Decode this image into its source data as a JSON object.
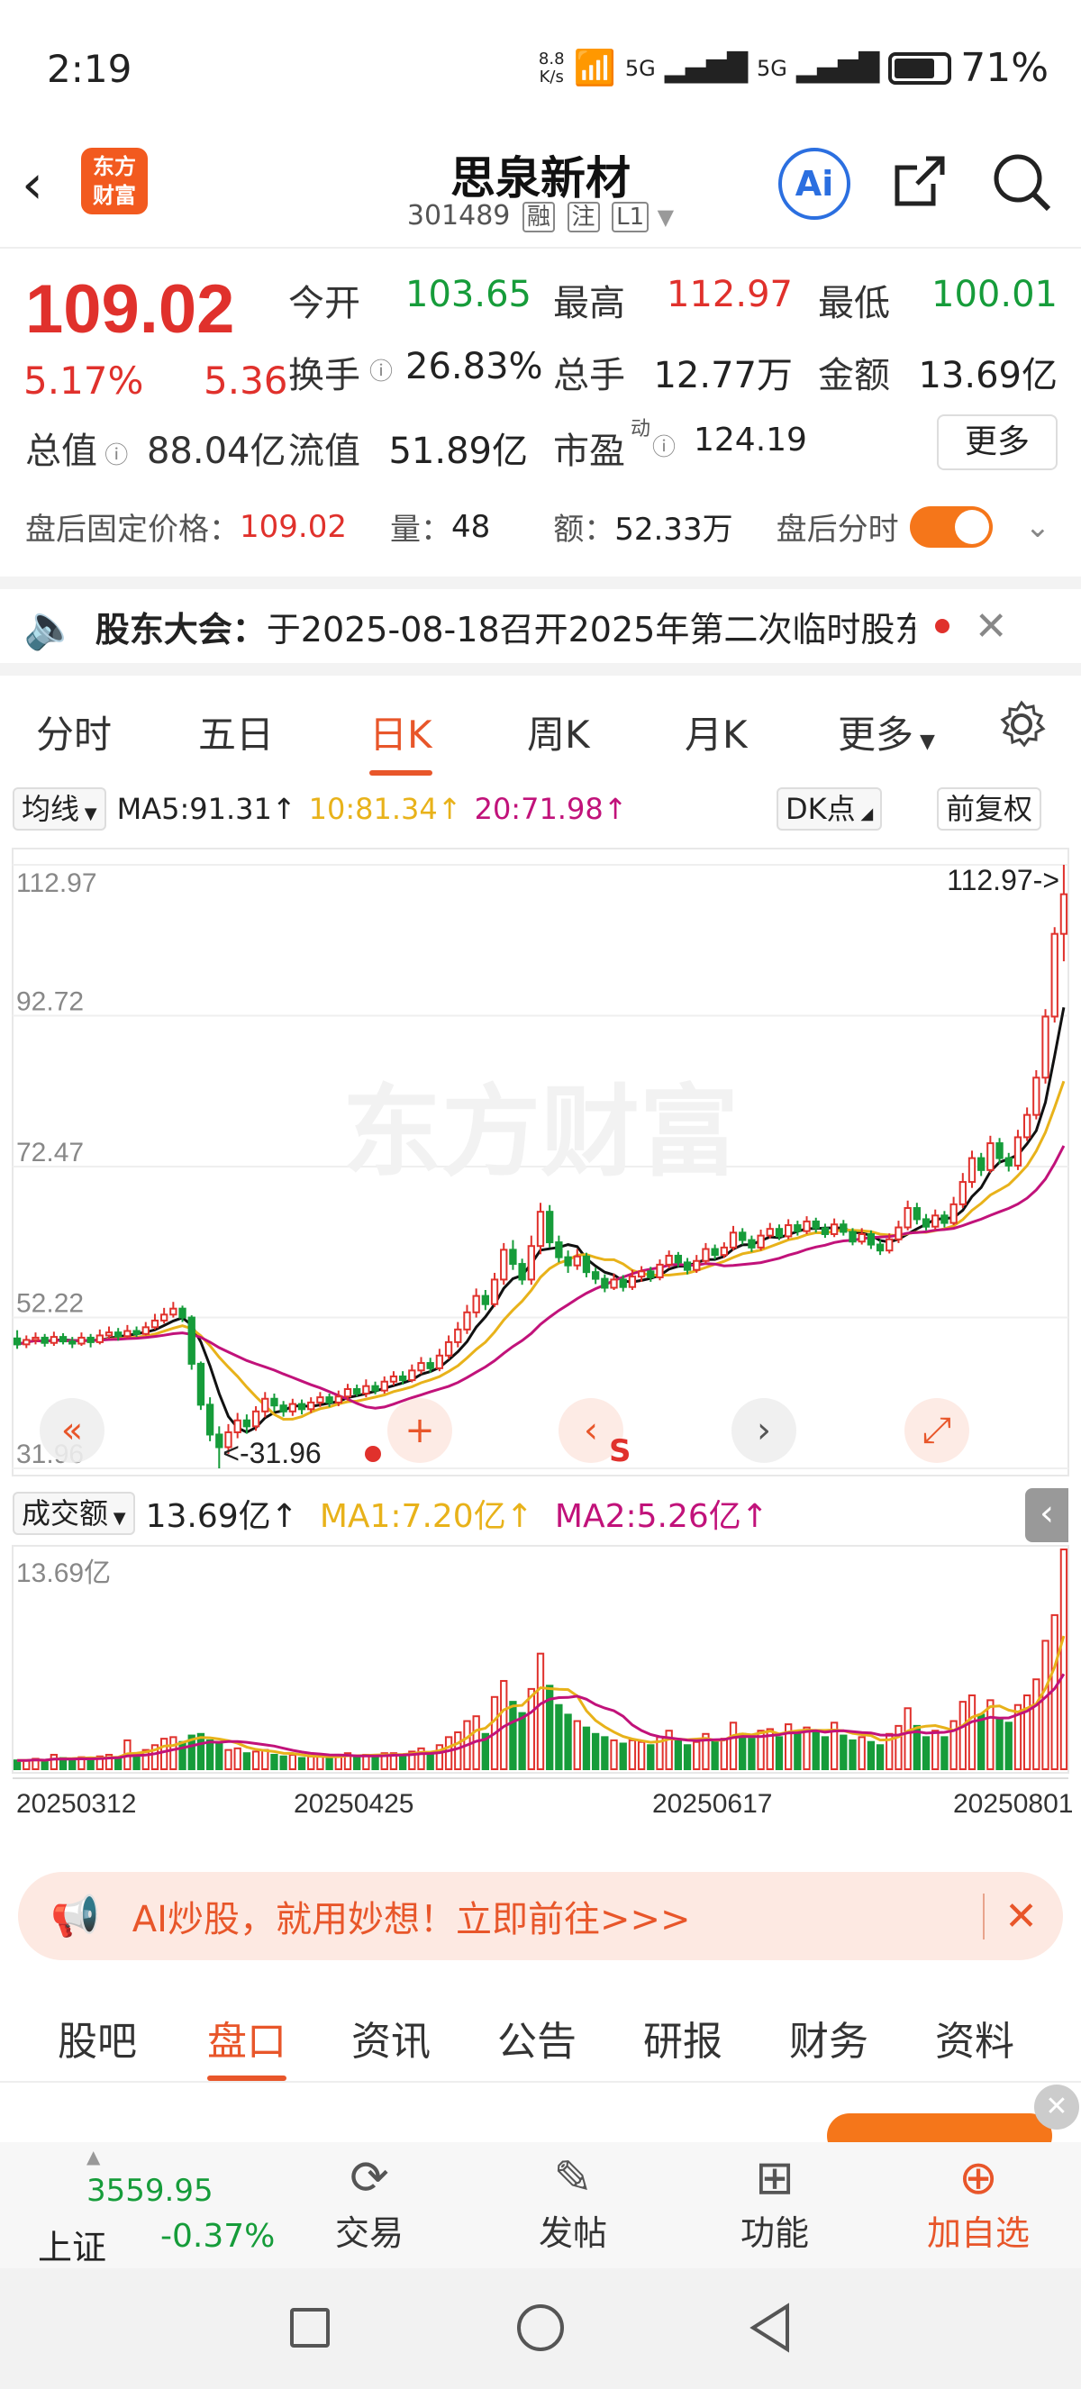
{
  "status_bar": {
    "time": "2:19",
    "net_speed_top": "8.8",
    "net_speed_bottom": "K/s",
    "signal1": "5G",
    "signal2": "5G",
    "battery": "71%"
  },
  "header": {
    "title": "思泉新材",
    "code": "301489",
    "tags": [
      "融",
      "注",
      "L1"
    ],
    "logo_line1": "东方",
    "logo_line2": "财富",
    "ai_label": "Ai"
  },
  "quote": {
    "price": "109.02",
    "change_pct": "5.17%",
    "change": "5.36",
    "items": [
      {
        "label": "今开",
        "value": "103.65",
        "color": "green"
      },
      {
        "label": "最高",
        "value": "112.97",
        "color": "red"
      },
      {
        "label": "最低",
        "value": "100.01",
        "color": "green"
      },
      {
        "label": "换手",
        "value": "26.83%",
        "color": "normal"
      },
      {
        "label": "总手",
        "value": "12.77万",
        "color": "normal"
      },
      {
        "label": "金额",
        "value": "13.69亿",
        "color": "normal"
      },
      {
        "label": "总值",
        "value": "88.04亿",
        "color": "normal"
      },
      {
        "label": "流值",
        "value": "51.89亿",
        "color": "normal"
      },
      {
        "label": "市盈",
        "value": "124.19",
        "color": "normal"
      }
    ],
    "pe_sup": "动",
    "more": "更多"
  },
  "after_hours": {
    "label": "盘后固定价格：",
    "price": "109.02",
    "vol_label": "量：",
    "vol": "48",
    "amt_label": "额：",
    "amt": "52.33万",
    "toggle_label": "盘后分时",
    "toggle_on": true
  },
  "notice": {
    "prefix": "股东大会：",
    "text": "于2025-08-18召开2025年第二次临时股东..."
  },
  "kline_tabs": [
    {
      "label": "分时",
      "active": false
    },
    {
      "label": "五日",
      "active": false
    },
    {
      "label": "日K",
      "active": true
    },
    {
      "label": "周K",
      "active": false
    },
    {
      "label": "月K",
      "active": false
    },
    {
      "label": "更多",
      "active": false
    }
  ],
  "chart_toolbar": {
    "indicator": "均线",
    "ma5": "MA5:91.31",
    "ma10": "10:81.34",
    "ma20": "20:71.98",
    "dk": "DK点",
    "adjust": "前复权",
    "arrow": "↑"
  },
  "volume_toolbar": {
    "indicator": "成交额",
    "value": "13.69亿",
    "ma1": "MA1:7.20亿",
    "ma2": "MA2:5.26亿",
    "arrow": "↑"
  },
  "chart_data": {
    "type": "candlestick",
    "price_axis": {
      "ticks": [
        "112.97",
        "92.72",
        "72.47",
        "52.22",
        "31.96"
      ],
      "ylim": [
        31.96,
        112.97
      ]
    },
    "max_label": "112.97->",
    "min_label": "<-31.96",
    "volume_axis": {
      "max_label": "13.69亿",
      "ylim": [
        0,
        13.69
      ]
    },
    "date_labels": [
      "20250312",
      "20250425",
      "20250617",
      "20250801"
    ],
    "series": [
      {
        "name": "MA5",
        "color": "#111111"
      },
      {
        "name": "MA10",
        "color": "#e8b21a"
      },
      {
        "name": "MA20",
        "color": "#c1127a"
      }
    ],
    "candles": [
      {
        "o": 49.4,
        "c": 48.6,
        "h": 50.5,
        "l": 48.0,
        "v": 0.55
      },
      {
        "o": 48.6,
        "c": 49.2,
        "h": 49.8,
        "l": 48.1,
        "v": 0.55
      },
      {
        "o": 49.2,
        "c": 49.5,
        "h": 50.2,
        "l": 48.6,
        "v": 0.65
      },
      {
        "o": 49.5,
        "c": 48.8,
        "h": 50.0,
        "l": 48.3,
        "v": 0.5
      },
      {
        "o": 48.8,
        "c": 49.6,
        "h": 50.3,
        "l": 48.4,
        "v": 0.9
      },
      {
        "o": 49.6,
        "c": 49.0,
        "h": 50.1,
        "l": 48.6,
        "v": 0.7
      },
      {
        "o": 49.0,
        "c": 48.7,
        "h": 49.6,
        "l": 48.1,
        "v": 0.6
      },
      {
        "o": 48.7,
        "c": 49.5,
        "h": 50.2,
        "l": 48.4,
        "v": 0.75
      },
      {
        "o": 49.5,
        "c": 48.9,
        "h": 50.0,
        "l": 48.2,
        "v": 0.6
      },
      {
        "o": 48.9,
        "c": 49.8,
        "h": 50.6,
        "l": 48.6,
        "v": 0.8
      },
      {
        "o": 49.8,
        "c": 50.2,
        "h": 51.0,
        "l": 49.4,
        "v": 0.9
      },
      {
        "o": 50.2,
        "c": 49.7,
        "h": 50.8,
        "l": 49.1,
        "v": 0.7
      },
      {
        "o": 49.7,
        "c": 50.4,
        "h": 51.2,
        "l": 49.4,
        "v": 1.8
      },
      {
        "o": 50.4,
        "c": 50.0,
        "h": 51.0,
        "l": 49.6,
        "v": 0.8
      },
      {
        "o": 50.0,
        "c": 50.9,
        "h": 51.6,
        "l": 49.8,
        "v": 1.2
      },
      {
        "o": 50.9,
        "c": 51.8,
        "h": 52.7,
        "l": 50.6,
        "v": 1.5
      },
      {
        "o": 51.8,
        "c": 52.6,
        "h": 53.5,
        "l": 51.4,
        "v": 1.9
      },
      {
        "o": 52.6,
        "c": 53.4,
        "h": 54.3,
        "l": 52.2,
        "v": 2.0
      },
      {
        "o": 53.4,
        "c": 52.2,
        "h": 53.8,
        "l": 51.6,
        "v": 1.7
      },
      {
        "o": 52.2,
        "c": 46.0,
        "h": 52.5,
        "l": 45.2,
        "v": 2.1
      },
      {
        "o": 46.0,
        "c": 40.5,
        "h": 46.3,
        "l": 39.8,
        "v": 2.2
      },
      {
        "o": 40.5,
        "c": 36.5,
        "h": 41.5,
        "l": 35.6,
        "v": 1.8
      },
      {
        "o": 36.5,
        "c": 34.8,
        "h": 37.6,
        "l": 31.96,
        "v": 1.6
      },
      {
        "o": 34.8,
        "c": 36.8,
        "h": 37.9,
        "l": 33.9,
        "v": 1.2
      },
      {
        "o": 36.8,
        "c": 38.4,
        "h": 39.4,
        "l": 36.0,
        "v": 1.3
      },
      {
        "o": 38.4,
        "c": 37.6,
        "h": 39.2,
        "l": 36.6,
        "v": 1.0
      },
      {
        "o": 37.6,
        "c": 39.6,
        "h": 40.3,
        "l": 37.0,
        "v": 1.1
      },
      {
        "o": 39.6,
        "c": 41.3,
        "h": 42.2,
        "l": 38.8,
        "v": 1.2
      },
      {
        "o": 41.3,
        "c": 40.4,
        "h": 42.0,
        "l": 39.6,
        "v": 0.9
      },
      {
        "o": 40.4,
        "c": 39.6,
        "h": 41.0,
        "l": 38.9,
        "v": 0.8
      },
      {
        "o": 39.6,
        "c": 40.6,
        "h": 41.3,
        "l": 39.0,
        "v": 0.9
      },
      {
        "o": 40.6,
        "c": 39.9,
        "h": 41.2,
        "l": 39.2,
        "v": 0.7
      },
      {
        "o": 39.9,
        "c": 40.8,
        "h": 41.5,
        "l": 39.4,
        "v": 0.8
      },
      {
        "o": 40.8,
        "c": 41.5,
        "h": 42.2,
        "l": 40.2,
        "v": 0.8
      },
      {
        "o": 41.5,
        "c": 40.8,
        "h": 42.0,
        "l": 40.2,
        "v": 0.7
      },
      {
        "o": 40.8,
        "c": 41.6,
        "h": 42.4,
        "l": 40.3,
        "v": 0.9
      },
      {
        "o": 41.6,
        "c": 42.6,
        "h": 43.3,
        "l": 41.1,
        "v": 1.0
      },
      {
        "o": 42.6,
        "c": 42.0,
        "h": 43.2,
        "l": 41.6,
        "v": 0.8
      },
      {
        "o": 42.0,
        "c": 43.0,
        "h": 43.9,
        "l": 41.5,
        "v": 0.9
      },
      {
        "o": 43.0,
        "c": 42.4,
        "h": 43.6,
        "l": 41.9,
        "v": 0.8
      },
      {
        "o": 42.4,
        "c": 43.6,
        "h": 44.3,
        "l": 42.0,
        "v": 1.0
      },
      {
        "o": 43.6,
        "c": 44.3,
        "h": 45.0,
        "l": 43.1,
        "v": 1.0
      },
      {
        "o": 44.3,
        "c": 43.8,
        "h": 45.0,
        "l": 43.2,
        "v": 0.9
      },
      {
        "o": 43.8,
        "c": 45.1,
        "h": 45.9,
        "l": 43.5,
        "v": 1.1
      },
      {
        "o": 45.1,
        "c": 46.1,
        "h": 46.9,
        "l": 44.6,
        "v": 1.3
      },
      {
        "o": 46.1,
        "c": 45.4,
        "h": 46.8,
        "l": 44.8,
        "v": 1.0
      },
      {
        "o": 45.4,
        "c": 47.1,
        "h": 48.0,
        "l": 45.0,
        "v": 1.5
      },
      {
        "o": 47.1,
        "c": 48.9,
        "h": 49.8,
        "l": 46.6,
        "v": 2.0
      },
      {
        "o": 48.9,
        "c": 50.6,
        "h": 51.6,
        "l": 48.2,
        "v": 2.3
      },
      {
        "o": 50.6,
        "c": 52.9,
        "h": 53.9,
        "l": 50.0,
        "v": 3.0
      },
      {
        "o": 52.9,
        "c": 55.1,
        "h": 56.1,
        "l": 52.2,
        "v": 3.3
      },
      {
        "o": 55.1,
        "c": 54.0,
        "h": 55.9,
        "l": 53.2,
        "v": 2.2
      },
      {
        "o": 54.0,
        "c": 57.3,
        "h": 58.2,
        "l": 53.6,
        "v": 4.5
      },
      {
        "o": 57.3,
        "c": 61.3,
        "h": 62.2,
        "l": 56.6,
        "v": 5.5
      },
      {
        "o": 61.3,
        "c": 59.4,
        "h": 62.6,
        "l": 58.6,
        "v": 4.2
      },
      {
        "o": 59.4,
        "c": 57.3,
        "h": 60.1,
        "l": 56.6,
        "v": 3.5
      },
      {
        "o": 57.3,
        "c": 61.8,
        "h": 63.2,
        "l": 56.6,
        "v": 5.0
      },
      {
        "o": 61.8,
        "c": 66.4,
        "h": 67.6,
        "l": 60.7,
        "v": 7.2
      },
      {
        "o": 66.4,
        "c": 62.3,
        "h": 67.3,
        "l": 61.6,
        "v": 5.2
      },
      {
        "o": 62.3,
        "c": 60.3,
        "h": 63.2,
        "l": 59.6,
        "v": 4.0
      },
      {
        "o": 60.3,
        "c": 59.2,
        "h": 61.2,
        "l": 58.2,
        "v": 3.4
      },
      {
        "o": 59.2,
        "c": 60.4,
        "h": 61.4,
        "l": 58.6,
        "v": 3.0
      },
      {
        "o": 60.4,
        "c": 58.3,
        "h": 60.9,
        "l": 57.6,
        "v": 2.6
      },
      {
        "o": 58.3,
        "c": 57.4,
        "h": 58.9,
        "l": 56.7,
        "v": 2.2
      },
      {
        "o": 57.4,
        "c": 56.2,
        "h": 58.0,
        "l": 55.6,
        "v": 2.0
      },
      {
        "o": 56.2,
        "c": 57.3,
        "h": 58.1,
        "l": 55.9,
        "v": 1.8
      },
      {
        "o": 57.3,
        "c": 56.3,
        "h": 57.9,
        "l": 55.7,
        "v": 1.6
      },
      {
        "o": 56.3,
        "c": 57.7,
        "h": 58.6,
        "l": 55.9,
        "v": 1.8
      },
      {
        "o": 57.7,
        "c": 58.4,
        "h": 59.1,
        "l": 57.0,
        "v": 1.7
      },
      {
        "o": 58.4,
        "c": 57.6,
        "h": 59.0,
        "l": 57.0,
        "v": 1.5
      },
      {
        "o": 57.6,
        "c": 59.3,
        "h": 60.0,
        "l": 57.2,
        "v": 2.0
      },
      {
        "o": 59.3,
        "c": 60.5,
        "h": 61.2,
        "l": 58.8,
        "v": 2.4
      },
      {
        "o": 60.5,
        "c": 59.6,
        "h": 61.0,
        "l": 59.0,
        "v": 1.8
      },
      {
        "o": 59.6,
        "c": 58.6,
        "h": 60.2,
        "l": 58.0,
        "v": 1.5
      },
      {
        "o": 58.6,
        "c": 59.8,
        "h": 60.6,
        "l": 58.2,
        "v": 1.7
      },
      {
        "o": 59.8,
        "c": 61.4,
        "h": 62.2,
        "l": 59.4,
        "v": 2.2
      },
      {
        "o": 61.4,
        "c": 60.6,
        "h": 62.0,
        "l": 60.0,
        "v": 1.8
      },
      {
        "o": 60.6,
        "c": 61.6,
        "h": 62.3,
        "l": 60.2,
        "v": 1.9
      },
      {
        "o": 61.6,
        "c": 63.6,
        "h": 64.5,
        "l": 61.2,
        "v": 2.9
      },
      {
        "o": 63.6,
        "c": 62.6,
        "h": 64.2,
        "l": 62.0,
        "v": 2.2
      },
      {
        "o": 62.6,
        "c": 61.6,
        "h": 63.2,
        "l": 61.0,
        "v": 1.9
      },
      {
        "o": 61.6,
        "c": 63.2,
        "h": 64.0,
        "l": 61.2,
        "v": 2.4
      },
      {
        "o": 63.2,
        "c": 64.1,
        "h": 64.9,
        "l": 62.8,
        "v": 2.5
      },
      {
        "o": 64.1,
        "c": 63.1,
        "h": 64.7,
        "l": 62.6,
        "v": 2.0
      },
      {
        "o": 63.1,
        "c": 64.6,
        "h": 65.4,
        "l": 62.7,
        "v": 2.8
      },
      {
        "o": 64.6,
        "c": 63.8,
        "h": 65.2,
        "l": 63.2,
        "v": 2.3
      },
      {
        "o": 63.8,
        "c": 65.1,
        "h": 65.8,
        "l": 63.4,
        "v": 2.6
      },
      {
        "o": 65.1,
        "c": 64.2,
        "h": 65.6,
        "l": 63.6,
        "v": 2.4
      },
      {
        "o": 64.2,
        "c": 63.4,
        "h": 64.8,
        "l": 62.9,
        "v": 2.0
      },
      {
        "o": 63.4,
        "c": 64.7,
        "h": 65.5,
        "l": 63.0,
        "v": 2.9
      },
      {
        "o": 64.7,
        "c": 63.7,
        "h": 65.3,
        "l": 63.2,
        "v": 2.1
      },
      {
        "o": 63.7,
        "c": 62.4,
        "h": 64.2,
        "l": 61.9,
        "v": 1.8
      },
      {
        "o": 62.4,
        "c": 63.4,
        "h": 64.2,
        "l": 62.0,
        "v": 2.0
      },
      {
        "o": 63.4,
        "c": 62.0,
        "h": 63.9,
        "l": 61.4,
        "v": 1.7
      },
      {
        "o": 62.0,
        "c": 61.2,
        "h": 62.6,
        "l": 60.6,
        "v": 1.5
      },
      {
        "o": 61.2,
        "c": 62.7,
        "h": 63.5,
        "l": 60.8,
        "v": 2.2
      },
      {
        "o": 62.7,
        "c": 64.3,
        "h": 65.2,
        "l": 62.2,
        "v": 2.7
      },
      {
        "o": 64.3,
        "c": 66.9,
        "h": 67.9,
        "l": 63.9,
        "v": 3.8
      },
      {
        "o": 66.9,
        "c": 65.4,
        "h": 67.6,
        "l": 64.7,
        "v": 2.7
      },
      {
        "o": 65.4,
        "c": 64.4,
        "h": 66.1,
        "l": 63.9,
        "v": 2.0
      },
      {
        "o": 64.4,
        "c": 65.9,
        "h": 66.7,
        "l": 64.0,
        "v": 2.4
      },
      {
        "o": 65.9,
        "c": 64.9,
        "h": 66.5,
        "l": 64.3,
        "v": 2.0
      },
      {
        "o": 64.9,
        "c": 67.4,
        "h": 68.4,
        "l": 64.6,
        "v": 3.0
      },
      {
        "o": 67.4,
        "c": 70.4,
        "h": 71.6,
        "l": 66.9,
        "v": 4.2
      },
      {
        "o": 70.4,
        "c": 73.6,
        "h": 74.6,
        "l": 69.6,
        "v": 4.6
      },
      {
        "o": 73.6,
        "c": 72.0,
        "h": 74.3,
        "l": 71.2,
        "v": 3.4
      },
      {
        "o": 72.0,
        "c": 75.6,
        "h": 76.6,
        "l": 71.6,
        "v": 4.3
      },
      {
        "o": 75.6,
        "c": 73.6,
        "h": 76.3,
        "l": 72.8,
        "v": 3.2
      },
      {
        "o": 73.6,
        "c": 72.6,
        "h": 74.3,
        "l": 71.8,
        "v": 2.9
      },
      {
        "o": 72.6,
        "c": 76.4,
        "h": 77.4,
        "l": 72.0,
        "v": 4.0
      },
      {
        "o": 76.4,
        "c": 79.4,
        "h": 80.4,
        "l": 75.9,
        "v": 4.6
      },
      {
        "o": 79.4,
        "c": 84.4,
        "h": 85.4,
        "l": 78.8,
        "v": 5.6
      },
      {
        "o": 84.4,
        "c": 92.6,
        "h": 93.6,
        "l": 83.6,
        "v": 8.0
      },
      {
        "o": 92.6,
        "c": 103.7,
        "h": 104.6,
        "l": 91.8,
        "v": 9.6
      },
      {
        "o": 103.7,
        "c": 109.02,
        "h": 112.97,
        "l": 100.01,
        "v": 13.69
      }
    ]
  },
  "chart_overlay_buttons": [
    "double-left",
    "plus",
    "s-mark",
    "right",
    "expand"
  ],
  "banner": {
    "text": "AI炒股，就用妙想！立即前往>>>"
  },
  "footer_tabs": [
    {
      "label": "股吧",
      "active": false
    },
    {
      "label": "盘口",
      "active": true
    },
    {
      "label": "资讯",
      "active": false
    },
    {
      "label": "公告",
      "active": false
    },
    {
      "label": "研报",
      "active": false
    },
    {
      "label": "财务",
      "active": false
    },
    {
      "label": "资料",
      "active": false
    }
  ],
  "bottom_nav": {
    "index_value": "3559.95",
    "index_name": "上证",
    "index_change": "-0.37%",
    "items": [
      "交易",
      "发帖",
      "功能",
      "加自选"
    ]
  },
  "colors": {
    "accent": "#e8562a",
    "up": "#e0312c",
    "down": "#169c3a"
  }
}
